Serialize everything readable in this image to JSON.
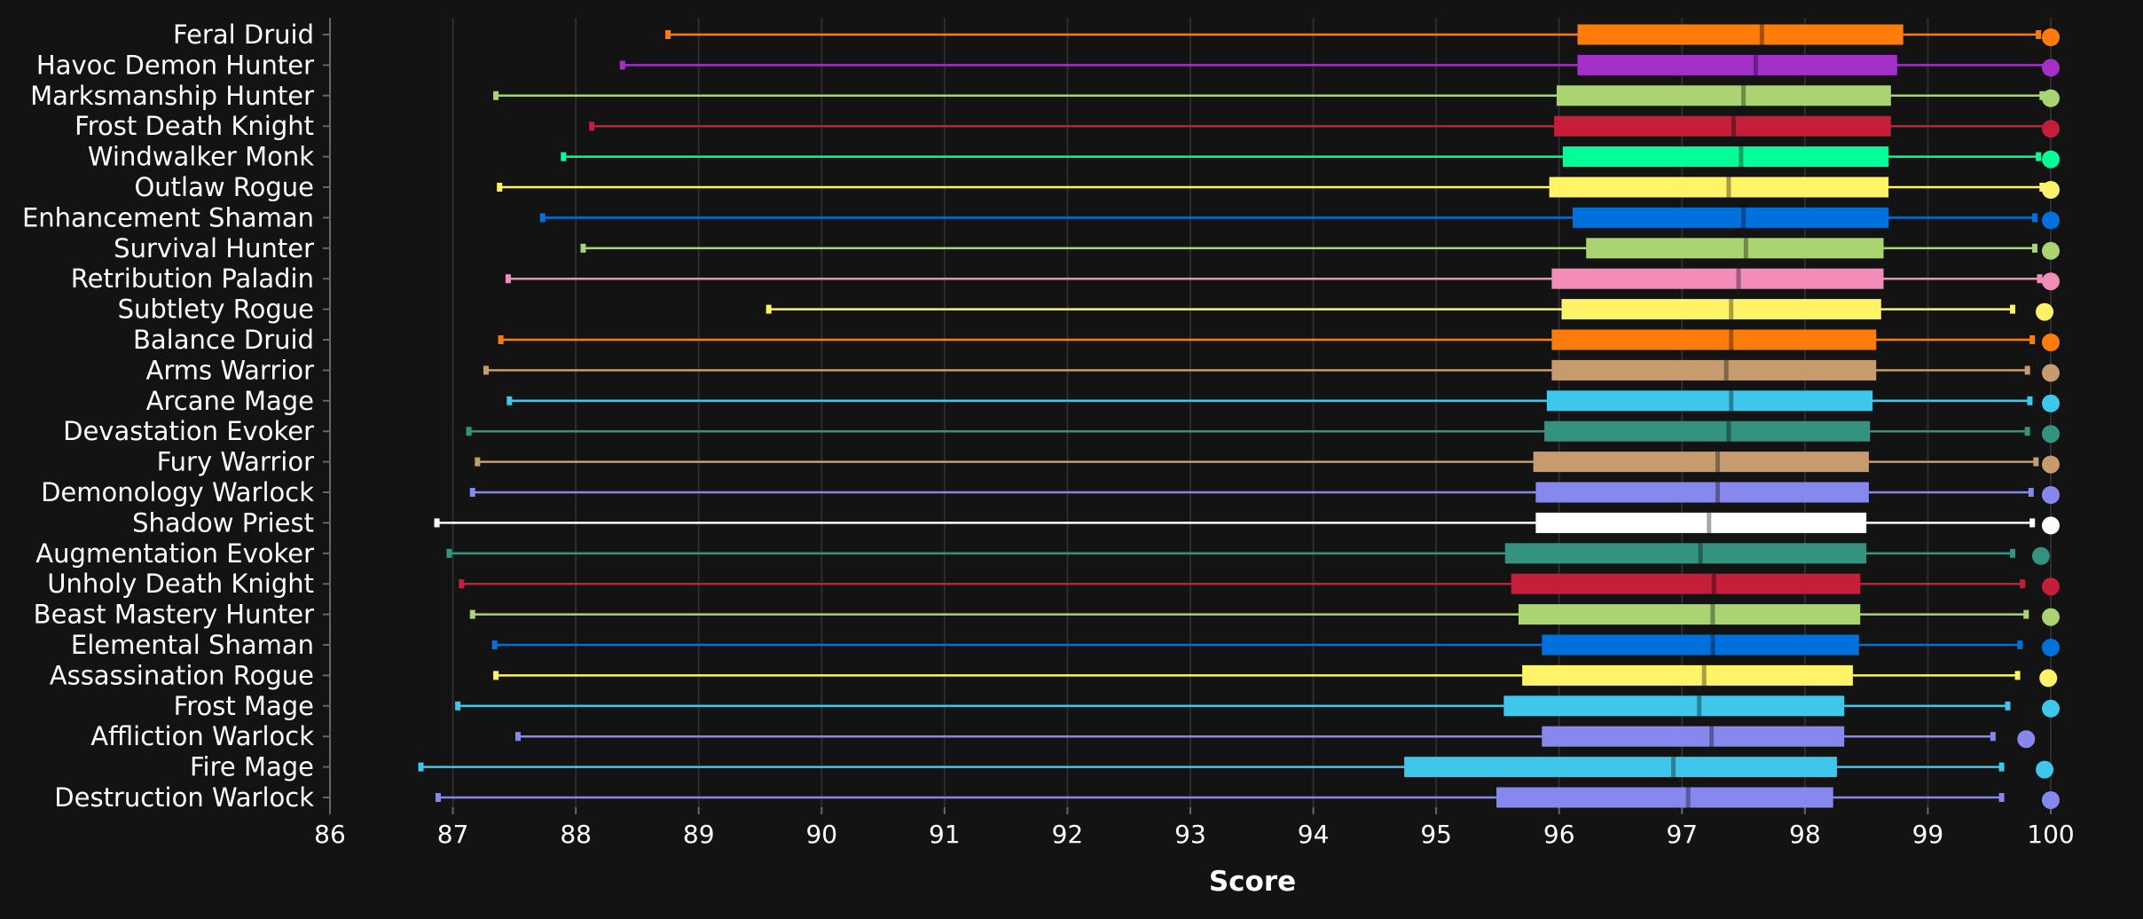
{
  "chart_data": {
    "type": "box",
    "xlabel": "Score",
    "xlim": [
      86,
      100
    ],
    "x_ticks": [
      "86",
      "87",
      "88",
      "89",
      "90",
      "91",
      "92",
      "93",
      "94",
      "95",
      "96",
      "97",
      "98",
      "99",
      "100"
    ],
    "grid": "vertical",
    "series": [
      {
        "name": "Feral Druid",
        "color": "#FF7C0A",
        "min": 88.75,
        "q1": 96.15,
        "median": 97.65,
        "q3": 98.8,
        "max": 99.9,
        "top": 100
      },
      {
        "name": "Havoc Demon Hunter",
        "color": "#A330C9",
        "min": 88.38,
        "q1": 96.15,
        "median": 97.6,
        "q3": 98.75,
        "max": 100,
        "top": 100
      },
      {
        "name": "Marksmanship Hunter",
        "color": "#AAD372",
        "min": 87.35,
        "q1": 95.98,
        "median": 97.5,
        "q3": 98.7,
        "max": 99.93,
        "top": 100
      },
      {
        "name": "Frost Death Knight",
        "color": "#C41E3A",
        "min": 88.13,
        "q1": 95.96,
        "median": 97.42,
        "q3": 98.7,
        "max": 100,
        "top": 100
      },
      {
        "name": "Windwalker Monk",
        "color": "#00FF98",
        "min": 87.9,
        "q1": 96.03,
        "median": 97.48,
        "q3": 98.68,
        "max": 99.9,
        "top": 100
      },
      {
        "name": "Outlaw Rogue",
        "color": "#FFF468",
        "min": 87.38,
        "q1": 95.92,
        "median": 97.38,
        "q3": 98.68,
        "max": 99.93,
        "top": 100
      },
      {
        "name": "Enhancement Shaman",
        "color": "#0070DD",
        "min": 87.73,
        "q1": 96.11,
        "median": 97.5,
        "q3": 98.68,
        "max": 99.87,
        "top": 100
      },
      {
        "name": "Survival Hunter",
        "color": "#AAD372",
        "min": 88.06,
        "q1": 96.22,
        "median": 97.52,
        "q3": 98.64,
        "max": 99.87,
        "top": 100
      },
      {
        "name": "Retribution Paladin",
        "color": "#F48CBA",
        "min": 87.45,
        "q1": 95.94,
        "median": 97.46,
        "q3": 98.64,
        "max": 99.91,
        "top": 100
      },
      {
        "name": "Subtlety Rogue",
        "color": "#FFF468",
        "min": 89.57,
        "q1": 96.02,
        "median": 97.4,
        "q3": 98.62,
        "max": 99.69,
        "top": 99.95
      },
      {
        "name": "Balance Druid",
        "color": "#FF7C0A",
        "min": 87.39,
        "q1": 95.94,
        "median": 97.4,
        "q3": 98.58,
        "max": 99.85,
        "top": 100
      },
      {
        "name": "Arms Warrior",
        "color": "#C69B6D",
        "min": 87.27,
        "q1": 95.94,
        "median": 97.36,
        "q3": 98.58,
        "max": 99.81,
        "top": 100
      },
      {
        "name": "Arcane Mage",
        "color": "#3FC7EB",
        "min": 87.46,
        "q1": 95.9,
        "median": 97.4,
        "q3": 98.55,
        "max": 99.83,
        "top": 100
      },
      {
        "name": "Devastation Evoker",
        "color": "#33937F",
        "min": 87.13,
        "q1": 95.88,
        "median": 97.38,
        "q3": 98.53,
        "max": 99.81,
        "top": 100
      },
      {
        "name": "Fury Warrior",
        "color": "#C69B6D",
        "min": 87.2,
        "q1": 95.79,
        "median": 97.29,
        "q3": 98.52,
        "max": 99.88,
        "top": 100
      },
      {
        "name": "Demonology Warlock",
        "color": "#8788EE",
        "min": 87.16,
        "q1": 95.81,
        "median": 97.29,
        "q3": 98.52,
        "max": 99.84,
        "top": 100
      },
      {
        "name": "Shadow Priest",
        "color": "#FFFFFF",
        "min": 86.87,
        "q1": 95.81,
        "median": 97.22,
        "q3": 98.5,
        "max": 99.85,
        "top": 100
      },
      {
        "name": "Augmentation Evoker",
        "color": "#33937F",
        "min": 86.97,
        "q1": 95.56,
        "median": 97.15,
        "q3": 98.5,
        "max": 99.69,
        "top": 99.92
      },
      {
        "name": "Unholy Death Knight",
        "color": "#C41E3A",
        "min": 87.07,
        "q1": 95.61,
        "median": 97.26,
        "q3": 98.45,
        "max": 99.77,
        "top": 100
      },
      {
        "name": "Beast Mastery Hunter",
        "color": "#AAD372",
        "min": 87.16,
        "q1": 95.67,
        "median": 97.25,
        "q3": 98.45,
        "max": 99.8,
        "top": 100
      },
      {
        "name": "Elemental Shaman",
        "color": "#0070DD",
        "min": 87.34,
        "q1": 95.86,
        "median": 97.25,
        "q3": 98.44,
        "max": 99.75,
        "top": 100
      },
      {
        "name": "Assassination Rogue",
        "color": "#FFF468",
        "min": 87.35,
        "q1": 95.7,
        "median": 97.18,
        "q3": 98.39,
        "max": 99.73,
        "top": 99.98
      },
      {
        "name": "Frost Mage",
        "color": "#3FC7EB",
        "min": 87.04,
        "q1": 95.55,
        "median": 97.14,
        "q3": 98.32,
        "max": 99.65,
        "top": 100
      },
      {
        "name": "Affliction Warlock",
        "color": "#8788EE",
        "min": 87.53,
        "q1": 95.86,
        "median": 97.24,
        "q3": 98.32,
        "max": 99.53,
        "top": 99.8
      },
      {
        "name": "Fire Mage",
        "color": "#3FC7EB",
        "min": 86.74,
        "q1": 94.74,
        "median": 96.93,
        "q3": 98.26,
        "max": 99.6,
        "top": 99.95
      },
      {
        "name": "Destruction Warlock",
        "color": "#8788EE",
        "min": 86.88,
        "q1": 95.49,
        "median": 97.05,
        "q3": 98.23,
        "max": 99.6,
        "top": 100
      }
    ]
  }
}
